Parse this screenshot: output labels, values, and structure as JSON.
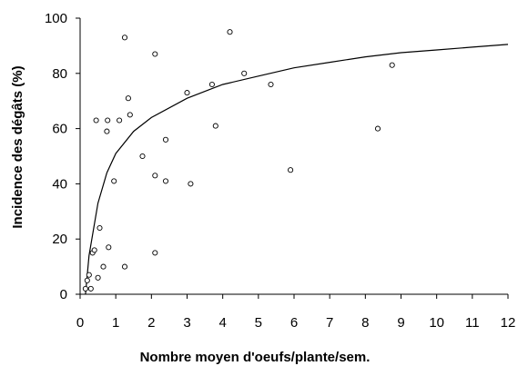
{
  "chart_data": {
    "type": "scatter",
    "title": "",
    "xlabel": "Nombre moyen d'oeufs/plante/sem.",
    "ylabel": "Incidence des dégâts (%)",
    "xlim": [
      0,
      12
    ],
    "ylim": [
      0,
      100
    ],
    "x_ticks": [
      "0",
      "1",
      "2",
      "3",
      "4",
      "5",
      "6",
      "7",
      "8",
      "9",
      "10",
      "11",
      "12"
    ],
    "y_ticks": [
      "0",
      "20",
      "40",
      "60",
      "80",
      "100"
    ],
    "grid": false,
    "legend": "none",
    "series": [
      {
        "marker": "open-circle",
        "points": [
          [
            0.15,
            2
          ],
          [
            0.2,
            5
          ],
          [
            0.25,
            7
          ],
          [
            0.3,
            2
          ],
          [
            0.35,
            15
          ],
          [
            0.4,
            16
          ],
          [
            0.45,
            63
          ],
          [
            0.5,
            6
          ],
          [
            0.55,
            24
          ],
          [
            0.65,
            10
          ],
          [
            0.75,
            59
          ],
          [
            0.77,
            63
          ],
          [
            0.8,
            17
          ],
          [
            0.95,
            41
          ],
          [
            1.1,
            63
          ],
          [
            1.25,
            10
          ],
          [
            1.25,
            93
          ],
          [
            1.35,
            71
          ],
          [
            1.4,
            65
          ],
          [
            1.75,
            50
          ],
          [
            2.1,
            15
          ],
          [
            2.1,
            43
          ],
          [
            2.1,
            87
          ],
          [
            2.4,
            41
          ],
          [
            2.4,
            56
          ],
          [
            3.0,
            73
          ],
          [
            3.1,
            40
          ],
          [
            3.7,
            76
          ],
          [
            3.8,
            61
          ],
          [
            4.2,
            95
          ],
          [
            4.6,
            80
          ],
          [
            5.35,
            76
          ],
          [
            5.9,
            45
          ],
          [
            8.35,
            60
          ],
          [
            8.75,
            83
          ]
        ]
      },
      {
        "type": "line",
        "fit": "logarithmic",
        "points": [
          [
            0.15,
            0
          ],
          [
            0.25,
            14
          ],
          [
            0.5,
            33
          ],
          [
            0.75,
            44
          ],
          [
            1,
            51
          ],
          [
            1.5,
            59
          ],
          [
            2,
            64
          ],
          [
            3,
            71
          ],
          [
            4,
            76
          ],
          [
            5,
            79
          ],
          [
            6,
            82
          ],
          [
            7,
            84
          ],
          [
            8,
            86
          ],
          [
            9,
            87.5
          ],
          [
            10,
            88.5
          ],
          [
            11,
            89.5
          ],
          [
            12,
            90.5
          ]
        ]
      }
    ]
  }
}
